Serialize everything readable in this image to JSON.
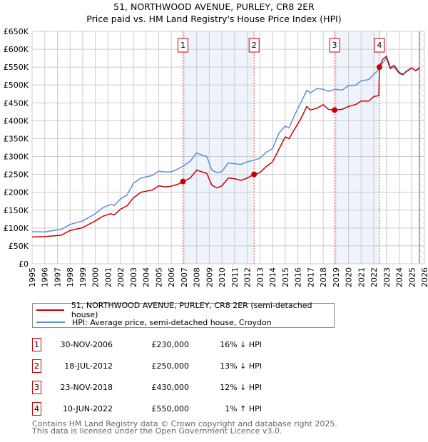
{
  "title": "51, NORTHWOOD AVENUE, PURLEY, CR8 2ER",
  "subtitle": "Price paid vs. HM Land Registry's House Price Index (HPI)",
  "colors": {
    "property": "#cc0000",
    "hpi": "#5b8fd1",
    "band": "#eef3fc"
  },
  "chart_data": {
    "type": "line",
    "xlim": [
      1995,
      2026
    ],
    "ylim": [
      0,
      650000
    ],
    "x_ticks": [
      "1995",
      "1996",
      "1997",
      "1998",
      "1999",
      "2000",
      "2001",
      "2002",
      "2003",
      "2004",
      "2005",
      "2006",
      "2007",
      "2008",
      "2009",
      "2010",
      "2011",
      "2012",
      "2013",
      "2014",
      "2015",
      "2016",
      "2017",
      "2018",
      "2019",
      "2020",
      "2021",
      "2022",
      "2023",
      "2024",
      "2025",
      "2026"
    ],
    "y_ticks": [
      "£0",
      "£50K",
      "£100K",
      "£150K",
      "£200K",
      "£250K",
      "£300K",
      "£350K",
      "£400K",
      "£450K",
      "£500K",
      "£550K",
      "£600K",
      "£650K"
    ],
    "grid": true,
    "series": [
      {
        "name": "51, NORTHWOOD AVENUE, PURLEY, CR8 2ER (semi-detached house)",
        "x": [
          1995,
          1996,
          1997,
          1997.3,
          1998,
          1999,
          2000,
          2000.6,
          2001.2,
          2001.5,
          2002,
          2002.5,
          2003,
          2003.6,
          2004,
          2004.5,
          2005,
          2005.5,
          2006,
          2006.5,
          2006.92,
          2007.5,
          2008,
          2008.6,
          2008.8,
          2009.2,
          2009.6,
          2010,
          2010.5,
          2011,
          2011.5,
          2012,
          2012.54,
          2013,
          2013.5,
          2014,
          2014.5,
          2015,
          2015.3,
          2015.8,
          2016.3,
          2016.7,
          2017,
          2017.5,
          2018,
          2018.4,
          2018.9,
          2019.5,
          2020,
          2020.6,
          2021,
          2021.6,
          2022,
          2022.4,
          2022.44,
          2022.7,
          2023,
          2023.3,
          2023.6,
          2024,
          2024.3,
          2024.6,
          2025,
          2025.3,
          2025.6
        ],
        "y": [
          75000,
          76000,
          79000,
          80000,
          93000,
          101000,
          120000,
          133000,
          140000,
          137000,
          153000,
          162000,
          184000,
          200000,
          203000,
          206000,
          218000,
          215000,
          217000,
          222000,
          230000,
          240000,
          262000,
          255000,
          253000,
          220000,
          212000,
          218000,
          240000,
          238000,
          233000,
          240000,
          250000,
          255000,
          272000,
          285000,
          320000,
          355000,
          350000,
          380000,
          410000,
          440000,
          430000,
          435000,
          445000,
          432000,
          430000,
          432000,
          440000,
          446000,
          455000,
          455000,
          468000,
          470000,
          550000,
          572000,
          580000,
          548000,
          555000,
          535000,
          530000,
          538000,
          548000,
          540000,
          548000
        ]
      },
      {
        "name": "HPI: Average price, semi-detached house, Croydon",
        "x": [
          1995,
          1996,
          1997,
          1997.3,
          1998,
          1999,
          2000,
          2000.6,
          2001.2,
          2001.5,
          2002,
          2002.5,
          2003,
          2003.6,
          2004,
          2004.5,
          2005,
          2005.5,
          2006,
          2006.5,
          2006.92,
          2007.5,
          2008,
          2008.6,
          2008.8,
          2009.2,
          2009.6,
          2010,
          2010.5,
          2011,
          2011.5,
          2012,
          2012.54,
          2013,
          2013.5,
          2014,
          2014.5,
          2015,
          2015.3,
          2015.8,
          2016.3,
          2016.7,
          2017,
          2017.5,
          2018,
          2018.4,
          2018.9,
          2019.5,
          2020,
          2020.6,
          2021,
          2021.6,
          2022,
          2022.4,
          2022.44,
          2022.7,
          2023,
          2023.3,
          2023.6,
          2024,
          2024.3,
          2024.6,
          2025,
          2025.3,
          2025.6
        ],
        "y": [
          90000,
          89000,
          95000,
          96000,
          110000,
          120000,
          140000,
          157000,
          166000,
          163000,
          182000,
          192000,
          225000,
          240000,
          243000,
          247000,
          259000,
          257000,
          257000,
          265000,
          273000,
          287000,
          310000,
          302000,
          300000,
          262000,
          255000,
          258000,
          282000,
          280000,
          278000,
          285000,
          290000,
          295000,
          312000,
          322000,
          365000,
          385000,
          380000,
          420000,
          455000,
          485000,
          478000,
          490000,
          488000,
          482000,
          488000,
          486000,
          498000,
          500000,
          512000,
          515000,
          530000,
          543000,
          545000,
          562000,
          575000,
          545000,
          550000,
          532000,
          528000,
          540000,
          548000,
          540000,
          545000
        ]
      }
    ],
    "sales": [
      {
        "label": "1",
        "x": 2006.92,
        "y": 230000
      },
      {
        "label": "2",
        "x": 2012.54,
        "y": 250000
      },
      {
        "label": "3",
        "x": 2018.9,
        "y": 430000
      },
      {
        "label": "4",
        "x": 2022.44,
        "y": 550000
      }
    ],
    "legend": "below"
  },
  "legend": {
    "property": "51, NORTHWOOD AVENUE, PURLEY, CR8 2ER (semi-detached house)",
    "hpi": "HPI: Average price, semi-detached house, Croydon"
  },
  "transactions": [
    {
      "num": "1",
      "date": "30-NOV-2006",
      "price": "£230,000",
      "hpi": "16% ↓ HPI"
    },
    {
      "num": "2",
      "date": "18-JUL-2012",
      "price": "£250,000",
      "hpi": "13% ↓ HPI"
    },
    {
      "num": "3",
      "date": "23-NOV-2018",
      "price": "£430,000",
      "hpi": "12% ↓ HPI"
    },
    {
      "num": "4",
      "date": "10-JUN-2022",
      "price": "£550,000",
      "hpi": "1% ↑ HPI"
    }
  ],
  "footer": {
    "line1": "Contains HM Land Registry data © Crown copyright and database right 2025.",
    "line2": "This data is licensed under the Open Government Licence v3.0."
  }
}
